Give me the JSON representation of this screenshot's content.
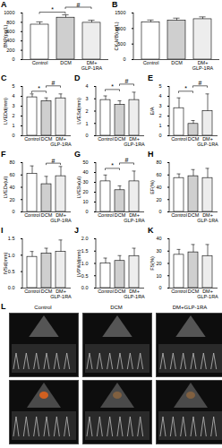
{
  "chart_data": [
    {
      "panel": "A",
      "type": "bar",
      "categories": [
        "Control",
        "DCM",
        "DM+ GLP-1RA"
      ],
      "values": [
        750,
        900,
        790
      ],
      "errors": [
        50,
        50,
        45
      ],
      "colors": [
        "#ffffff",
        "#cfcfcf",
        "#ededed"
      ],
      "ylabel": "BNP(pg/L)",
      "ylim": [
        0,
        1000
      ],
      "yticks": [
        0,
        200,
        400,
        600,
        800,
        1000
      ],
      "significance": [
        {
          "from": 0,
          "to": 1,
          "label": "*"
        },
        {
          "from": 1,
          "to": 2,
          "label": "#"
        }
      ]
    },
    {
      "panel": "B",
      "type": "bar",
      "categories": [
        "Control",
        "DCM",
        "DM+ GLP-1RA"
      ],
      "values": [
        1200,
        1250,
        1300
      ],
      "errors": [
        60,
        70,
        60
      ],
      "colors": [
        "#ffffff",
        "#cfcfcf",
        "#ededed"
      ],
      "ylabel": "CK-MB(ug/L)",
      "ylim": [
        0,
        1500
      ],
      "yticks": [
        0,
        500,
        1000,
        1500
      ],
      "significance": []
    },
    {
      "panel": "C",
      "type": "bar",
      "categories": [
        "Control",
        "DCM",
        "DM+ GLP-1RA"
      ],
      "values": [
        3.9,
        3.5,
        3.8
      ],
      "errors": [
        0.3,
        0.3,
        0.4
      ],
      "colors": [
        "#ffffff",
        "#cfcfcf",
        "#ededed"
      ],
      "ylabel": "LVEDd(mm)",
      "ylim": [
        0,
        5
      ],
      "yticks": [
        0,
        1,
        2,
        3,
        4,
        5
      ],
      "significance": [
        {
          "from": 0,
          "to": 1,
          "label": "*"
        },
        {
          "from": 1,
          "to": 2,
          "label": "#"
        }
      ]
    },
    {
      "panel": "D",
      "type": "bar",
      "categories": [
        "Control",
        "DCM",
        "DM+ GLP-1RA"
      ],
      "values": [
        2.9,
        2.5,
        2.9
      ],
      "errors": [
        0.3,
        0.3,
        0.6
      ],
      "colors": [
        "#ffffff",
        "#cfcfcf",
        "#ededed"
      ],
      "ylabel": "LVESd(mm)",
      "ylim": [
        0,
        4
      ],
      "yticks": [
        0,
        1,
        2,
        3,
        4
      ],
      "significance": [
        {
          "from": 0,
          "to": 1,
          "label": "*"
        },
        {
          "from": 1,
          "to": 2,
          "label": "#"
        }
      ]
    },
    {
      "panel": "E",
      "type": "bar",
      "categories": [
        "Control",
        "DCM",
        "DM+ GLP-1RA"
      ],
      "values": [
        2.8,
        1.2,
        2.5
      ],
      "errors": [
        1.0,
        0.3,
        1.7
      ],
      "colors": [
        "#ffffff",
        "#cfcfcf",
        "#ededed"
      ],
      "ylabel": "E/A",
      "ylim": [
        0,
        5
      ],
      "yticks": [
        0,
        1,
        2,
        3,
        4,
        5
      ],
      "significance": [
        {
          "from": 0,
          "to": 1,
          "label": "*"
        },
        {
          "from": 1,
          "to": 2,
          "label": "#"
        }
      ]
    },
    {
      "panel": "F",
      "type": "bar",
      "categories": [
        "Control",
        "DCM",
        "DM+ GLP-1RA"
      ],
      "values": [
        62,
        45,
        58
      ],
      "errors": [
        12,
        12,
        15
      ],
      "colors": [
        "#ffffff",
        "#cfcfcf",
        "#ededed"
      ],
      "ylabel": "LVEDv(ul)",
      "ylim": [
        0,
        80
      ],
      "yticks": [
        0,
        20,
        40,
        60,
        80
      ],
      "significance": [
        {
          "from": 1,
          "to": 2,
          "label": "#"
        }
      ]
    },
    {
      "panel": "G",
      "type": "bar",
      "categories": [
        "Control",
        "DCM",
        "DM+ GLP-1RA"
      ],
      "values": [
        31,
        22,
        31
      ],
      "errors": [
        6,
        4,
        10
      ],
      "colors": [
        "#ffffff",
        "#cfcfcf",
        "#ededed"
      ],
      "ylabel": "LVESv(ul)",
      "ylim": [
        0,
        50
      ],
      "yticks": [
        0,
        10,
        20,
        30,
        40,
        50
      ],
      "significance": [
        {
          "from": 0,
          "to": 1,
          "label": "*"
        },
        {
          "from": 1,
          "to": 2,
          "label": "#"
        }
      ]
    },
    {
      "panel": "H",
      "type": "bar",
      "categories": [
        "Control",
        "DCM",
        "DM+ GLP-1RA"
      ],
      "values": [
        55,
        58,
        55
      ],
      "errors": [
        6,
        10,
        15
      ],
      "colors": [
        "#ffffff",
        "#cfcfcf",
        "#ededed"
      ],
      "ylabel": "EF(%)",
      "ylim": [
        0,
        80
      ],
      "yticks": [
        0,
        20,
        40,
        60,
        80
      ],
      "significance": []
    },
    {
      "panel": "I",
      "type": "bar",
      "categories": [
        "Control",
        "DCM",
        "DM+ GLP-1RA"
      ],
      "values": [
        0.95,
        1.05,
        1.1
      ],
      "errors": [
        0.15,
        0.15,
        0.35
      ],
      "colors": [
        "#ffffff",
        "#cfcfcf",
        "#ededed"
      ],
      "ylabel": "IVSd(mm)",
      "ylim": [
        0,
        1.5
      ],
      "yticks": [
        {
          "value": 0,
          "label": "0.0"
        },
        0.5,
        {
          "value": 1,
          "label": "1.0"
        },
        1.5
      ],
      "significance": []
    },
    {
      "panel": "J",
      "type": "bar",
      "categories": [
        "Control",
        "DCM",
        "DM+ GLP-1RA"
      ],
      "values": [
        1.0,
        1.1,
        1.3
      ],
      "errors": [
        0.2,
        0.2,
        0.3
      ],
      "colors": [
        "#ffffff",
        "#cfcfcf",
        "#ededed"
      ],
      "ylabel": "LVPWd(mm)",
      "ylim": [
        0,
        2
      ],
      "yticks": [
        {
          "value": 0,
          "label": "0.0"
        },
        0.5,
        {
          "value": 1,
          "label": "1.0"
        },
        1.5,
        {
          "value": 2,
          "label": "2.0"
        }
      ],
      "significance": []
    },
    {
      "panel": "K",
      "type": "bar",
      "categories": [
        "Control",
        "DCM",
        "DM+ GLP-1RA"
      ],
      "values": [
        27,
        29,
        26
      ],
      "errors": [
        4,
        6,
        9
      ],
      "colors": [
        "#ffffff",
        "#cfcfcf",
        "#ededed"
      ],
      "ylabel": "FS(%)",
      "ylim": [
        0,
        40
      ],
      "yticks": [
        0,
        10,
        20,
        30,
        40
      ],
      "significance": []
    }
  ],
  "images": {
    "panel": "L",
    "columns": [
      "Control",
      "DCM",
      "DM+GLP-1RA"
    ]
  }
}
